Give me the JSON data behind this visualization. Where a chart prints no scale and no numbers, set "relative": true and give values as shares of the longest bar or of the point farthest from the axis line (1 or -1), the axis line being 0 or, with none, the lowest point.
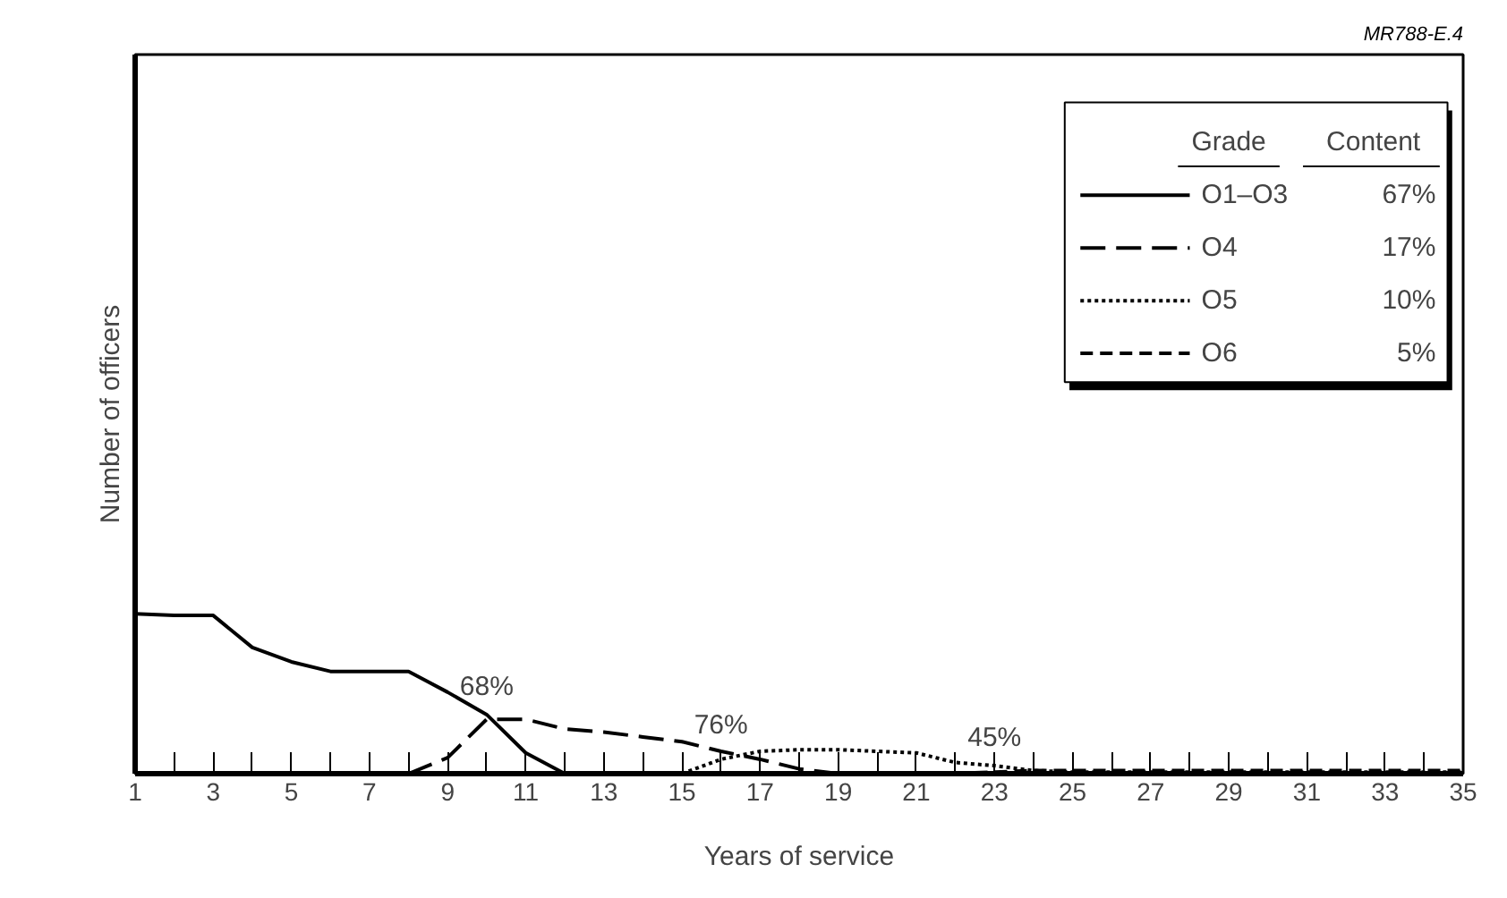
{
  "chart_data": {
    "type": "line",
    "relative": true,
    "xlabel": "Years of service",
    "ylabel": "Number of officers",
    "legend_title": "Grade",
    "x": [
      1,
      2,
      3,
      4,
      5,
      6,
      7,
      8,
      9,
      10,
      11,
      12,
      13,
      14,
      15,
      16,
      17,
      18,
      19,
      20,
      21,
      22,
      23,
      24,
      25,
      26,
      27,
      28,
      29,
      30,
      31,
      32,
      33,
      34,
      35
    ],
    "xlim": [
      1,
      35
    ],
    "xticks": [
      1,
      {
        "value": 2,
        "label": null
      },
      3,
      {
        "value": 4,
        "label": null
      },
      5,
      {
        "value": 6,
        "label": null
      },
      7,
      {
        "value": 8,
        "label": null
      },
      9,
      {
        "value": 10,
        "label": null
      },
      11,
      {
        "value": 12,
        "label": null
      },
      13,
      {
        "value": 14,
        "label": null
      },
      15,
      {
        "value": 16,
        "label": null
      },
      17,
      {
        "value": 18,
        "label": null
      },
      19,
      {
        "value": 20,
        "label": null
      },
      21,
      {
        "value": 22,
        "label": null
      },
      23,
      {
        "value": 24,
        "label": null
      },
      25,
      {
        "value": 26,
        "label": null
      },
      27,
      {
        "value": 28,
        "label": null
      },
      29,
      {
        "value": 30,
        "label": null
      },
      31,
      {
        "value": 32,
        "label": null
      },
      33,
      {
        "value": 34,
        "label": null
      },
      35
    ],
    "legend": "top right",
    "grid": false,
    "series": [
      {
        "name": "O1–O3",
        "color": "#000000",
        "line_style": "solid",
        "values": [
          1.0,
          0.99,
          0.99,
          0.79,
          0.7,
          0.64,
          0.64,
          0.64,
          0.51,
          0.37,
          0.13,
          0,
          0,
          0,
          0,
          0,
          0,
          0,
          0,
          0,
          0,
          0,
          0,
          0,
          0,
          0,
          0,
          0,
          0,
          0,
          0,
          0,
          0,
          0,
          0
        ]
      },
      {
        "name": "O4",
        "color": "#000000",
        "line_style": "longdash",
        "values": [
          null,
          null,
          null,
          null,
          null,
          null,
          null,
          0,
          0.1,
          0.34,
          0.34,
          0.28,
          0.26,
          0.23,
          0.2,
          0.14,
          0.09,
          0.03,
          0,
          0,
          0,
          0,
          0,
          0,
          0,
          0,
          0,
          0,
          0,
          0,
          0,
          0,
          0,
          0,
          0
        ]
      },
      {
        "name": "O5",
        "color": "#000000",
        "line_style": "dotted",
        "values": [
          null,
          null,
          null,
          null,
          null,
          null,
          null,
          null,
          null,
          null,
          null,
          null,
          null,
          null,
          0,
          0.09,
          0.14,
          0.15,
          0.15,
          0.14,
          0.13,
          0.07,
          0.05,
          0.02,
          0.01,
          0.01,
          0.01,
          0.01,
          0.01,
          0.01,
          0.01,
          0.01,
          0.01,
          0.01,
          0.01
        ]
      },
      {
        "name": "O6",
        "color": "#000000",
        "line_style": "dashed",
        "values": [
          null,
          null,
          null,
          null,
          null,
          null,
          null,
          null,
          null,
          null,
          null,
          null,
          null,
          null,
          null,
          null,
          null,
          null,
          null,
          null,
          null,
          0,
          0.01,
          0.02,
          0.02,
          0.02,
          0.02,
          0.02,
          0.02,
          0.02,
          0.02,
          0.02,
          0.02,
          0.02,
          0.02
        ]
      }
    ],
    "annotations": [
      {
        "text": "68%",
        "x": 10,
        "y": 0.36
      },
      {
        "text": "76%",
        "x": 16,
        "y": 0.12
      },
      {
        "text": "45%",
        "x": 23,
        "y": 0.04
      },
      "MR788-E.4",
      "Content",
      "67%",
      "17%",
      "10%",
      "5%"
    ]
  }
}
